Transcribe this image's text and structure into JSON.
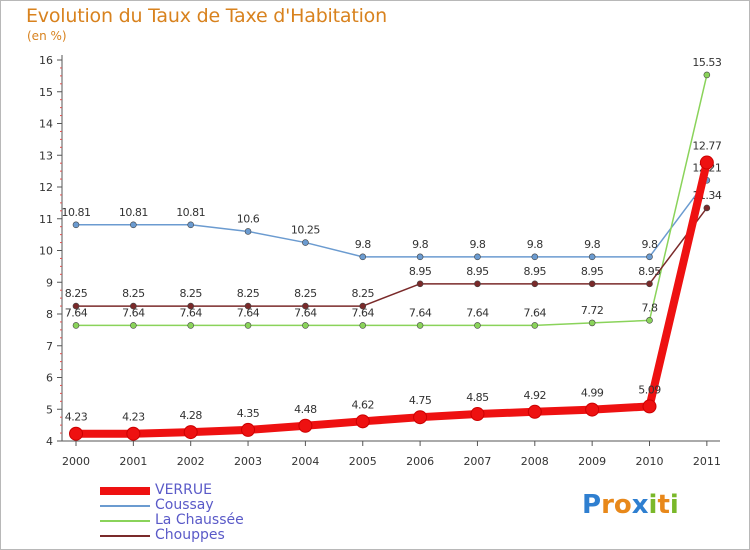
{
  "title": "Evolution du Taux de Taxe d'Habitation",
  "unit": "(en %)",
  "logo": {
    "text": "Proxiti",
    "colors": [
      "#2f7fd0",
      "#e8881a",
      "#e8881a",
      "#2f7fd0",
      "#7ab82a",
      "#e8881a",
      "#7ab82a"
    ]
  },
  "chart_data": {
    "type": "line",
    "x": [
      "2000",
      "2001",
      "2002",
      "2003",
      "2004",
      "2005",
      "2006",
      "2007",
      "2008",
      "2009",
      "2010",
      "2011"
    ],
    "ylim": [
      4,
      16
    ],
    "yticks": [
      4,
      5,
      6,
      7,
      8,
      9,
      10,
      11,
      12,
      13,
      14,
      15,
      16
    ],
    "grid": false,
    "legend_position": "bottom-left",
    "series": [
      {
        "name": "Coussay",
        "color": "#6b9bd0",
        "values": [
          10.81,
          10.81,
          10.81,
          10.6,
          10.25,
          9.8,
          9.8,
          9.8,
          9.8,
          9.8,
          9.8,
          12.21
        ],
        "labels": [
          "10.81",
          "10.81",
          "10.81",
          "10.6",
          "10.25",
          "9.8",
          "9.8",
          "9.8",
          "9.8",
          "9.8",
          "9.8",
          "12.21"
        ]
      },
      {
        "name": "La Chaussée",
        "color": "#8ad35a",
        "values": [
          7.64,
          7.64,
          7.64,
          7.64,
          7.64,
          7.64,
          7.64,
          7.64,
          7.64,
          7.72,
          7.8,
          15.53
        ],
        "labels": [
          "7.64",
          "7.64",
          "7.64",
          "7.64",
          "7.64",
          "7.64",
          "7.64",
          "7.64",
          "7.64",
          "7.72",
          "7.8",
          "15.53"
        ]
      },
      {
        "name": "Chouppes",
        "color": "#7a2a2a",
        "values": [
          8.25,
          8.25,
          8.25,
          8.25,
          8.25,
          8.25,
          8.95,
          8.95,
          8.95,
          8.95,
          8.95,
          11.34
        ],
        "labels": [
          "8.25",
          "8.25",
          "8.25",
          "8.25",
          "8.25",
          "8.25",
          "8.95",
          "8.95",
          "8.95",
          "8.95",
          "8.95",
          "11.34"
        ]
      },
      {
        "name": "VERRUE",
        "color": "#ee1111",
        "values": [
          4.23,
          4.23,
          4.28,
          4.35,
          4.48,
          4.62,
          4.75,
          4.85,
          4.92,
          4.99,
          5.09,
          12.77
        ],
        "labels": [
          "4.23",
          "4.23",
          "4.28",
          "4.35",
          "4.48",
          "4.62",
          "4.75",
          "4.85",
          "4.92",
          "4.99",
          "5.09",
          "12.77"
        ]
      }
    ],
    "legend_order": [
      "VERRUE",
      "Coussay",
      "La Chaussée",
      "Chouppes"
    ]
  }
}
